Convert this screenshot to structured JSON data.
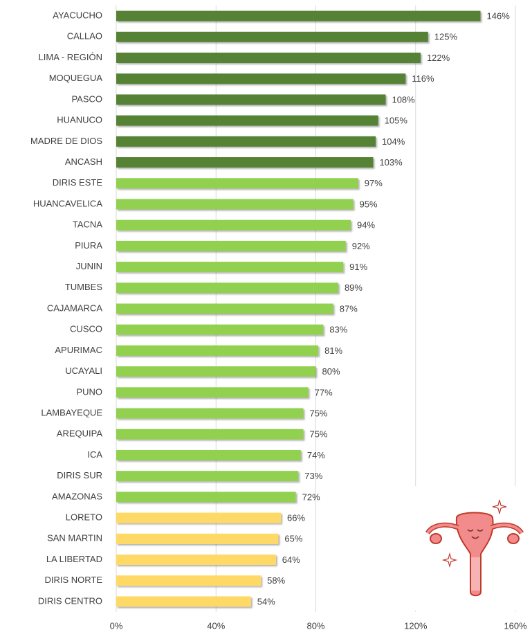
{
  "chart_data": {
    "type": "bar",
    "orientation": "horizontal",
    "categories": [
      "AYACUCHO",
      "CALLAO",
      "LIMA - REGIÓN",
      "MOQUEGUA",
      "PASCO",
      "HUANUCO",
      "MADRE DE DIOS",
      "ANCASH",
      "DIRIS ESTE",
      "HUANCAVELICA",
      "TACNA",
      "PIURA",
      "JUNIN",
      "TUMBES",
      "CAJAMARCA",
      "CUSCO",
      "APURIMAC",
      "UCAYALI",
      "PUNO",
      "LAMBAYEQUE",
      "AREQUIPA",
      "ICA",
      "DIRIS SUR",
      "AMAZONAS",
      "LORETO",
      "SAN MARTIN",
      "LA LIBERTAD",
      "DIRIS NORTE",
      "DIRIS CENTRO"
    ],
    "values": [
      146,
      125,
      122,
      116,
      108,
      105,
      104,
      103,
      97,
      95,
      94,
      92,
      91,
      89,
      87,
      83,
      81,
      80,
      77,
      75,
      75,
      74,
      73,
      72,
      66,
      65,
      64,
      58,
      54
    ],
    "value_labels": [
      "146%",
      "125%",
      "122%",
      "116%",
      "108%",
      "105%",
      "104%",
      "103%",
      "97%",
      "95%",
      "94%",
      "92%",
      "91%",
      "89%",
      "87%",
      "83%",
      "81%",
      "80%",
      "77%",
      "75%",
      "75%",
      "74%",
      "73%",
      "72%",
      "66%",
      "65%",
      "64%",
      "58%",
      "54%"
    ],
    "colors": [
      "#548235",
      "#548235",
      "#548235",
      "#548235",
      "#548235",
      "#548235",
      "#548235",
      "#548235",
      "#92d050",
      "#92d050",
      "#92d050",
      "#92d050",
      "#92d050",
      "#92d050",
      "#92d050",
      "#92d050",
      "#92d050",
      "#92d050",
      "#92d050",
      "#92d050",
      "#92d050",
      "#92d050",
      "#92d050",
      "#92d050",
      "#ffd966",
      "#ffd966",
      "#ffd966",
      "#ffd966",
      "#ffd966"
    ],
    "xlim": [
      0,
      160
    ],
    "xticks": [
      {
        "value": 0,
        "label": "0%"
      },
      {
        "value": 40,
        "label": "40%"
      },
      {
        "value": 80,
        "label": "80%"
      },
      {
        "value": 120,
        "label": "120%"
      },
      {
        "value": 160,
        "label": "160%"
      }
    ],
    "grid": true
  }
}
